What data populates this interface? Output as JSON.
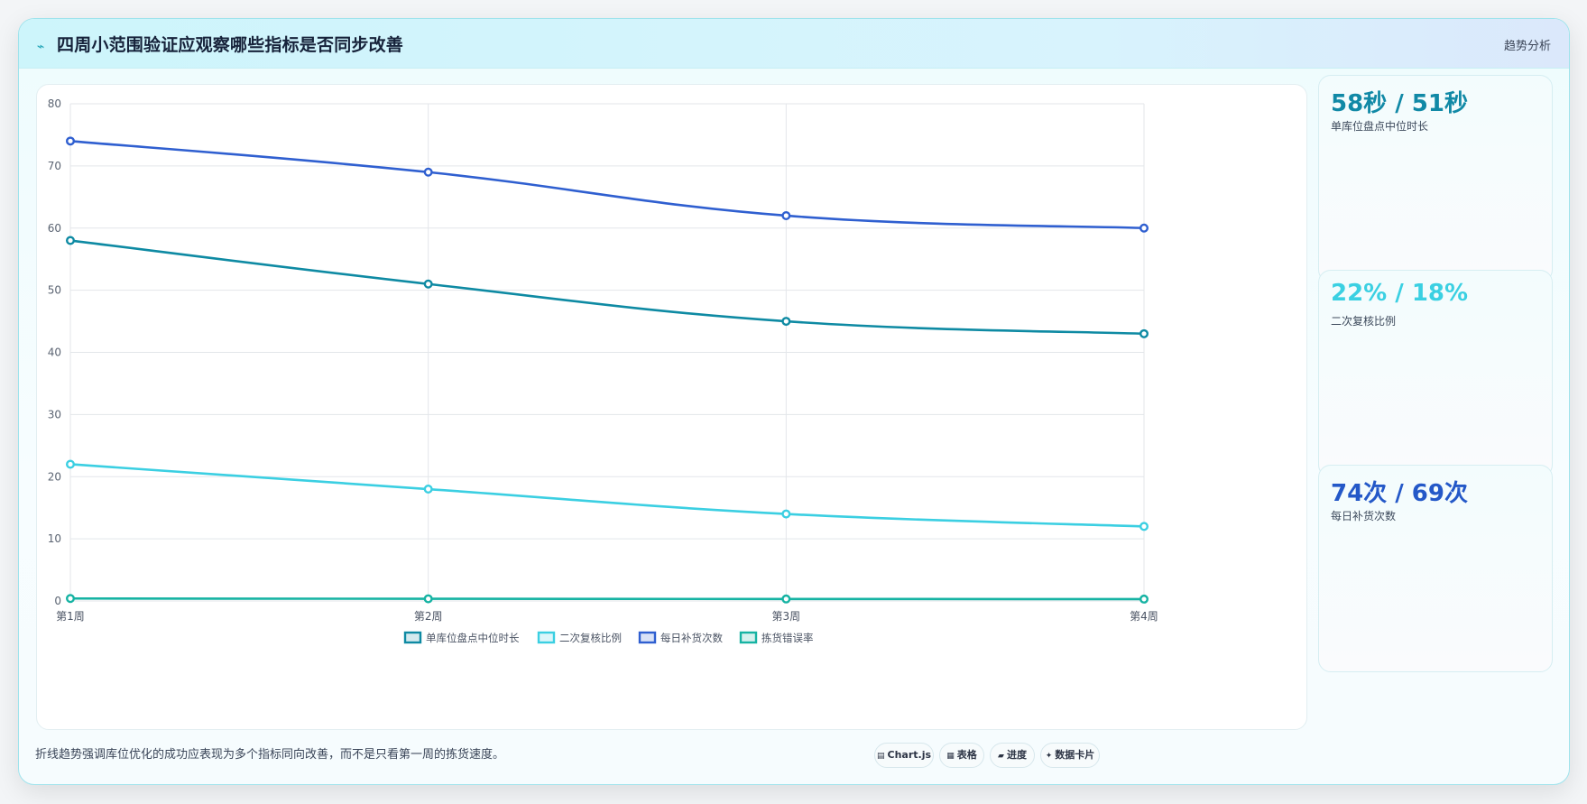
{
  "header": {
    "icon": "lightning-icon",
    "title": "四周小范围验证应观察哪些指标是否同步改善",
    "tag": "趋势分析"
  },
  "chart_data": {
    "type": "line",
    "categories": [
      "第1周",
      "第2周",
      "第3周",
      "第4周"
    ],
    "ylim": [
      0,
      80
    ],
    "yticks": [
      0,
      10,
      20,
      30,
      40,
      50,
      60,
      70,
      80
    ],
    "grid": true,
    "legend_placement": "bottom",
    "series": [
      {
        "name": "单库位盘点中位时长",
        "color": "#0e8aa3",
        "values": [
          58,
          51,
          45,
          43
        ]
      },
      {
        "name": "二次复核比例",
        "color": "#3bcfe2",
        "values": [
          22,
          18,
          14,
          12
        ]
      },
      {
        "name": "每日补货次数",
        "color": "#2f5fd0",
        "values": [
          74,
          69,
          62,
          60
        ]
      },
      {
        "name": "拣货错误率",
        "color": "#16b3a3",
        "values": [
          0.4,
          0.35,
          0.32,
          0.3
        ]
      }
    ]
  },
  "stats": [
    {
      "value": "58秒 / 51秒",
      "label": "单库位盘点中位时长",
      "color": "#1189a6"
    },
    {
      "value": "22% / 18%",
      "label": "二次复核比例",
      "color": "#3bd0e2"
    },
    {
      "value": "74次 / 69次",
      "label": "每日补货次数",
      "color": "#2458c8"
    }
  ],
  "caption": "折线趋势强调库位优化的成功应表现为多个指标同向改善，而不是只看第一周的拣货速度。",
  "buttons": [
    {
      "icon": "chart-icon",
      "glyph": "▤",
      "label": "Chart.js"
    },
    {
      "icon": "table-icon",
      "glyph": "▦",
      "label": "表格"
    },
    {
      "icon": "progress-icon",
      "glyph": "▰",
      "label": "进度"
    },
    {
      "icon": "sparkle-icon",
      "glyph": "✦",
      "label": "数据卡片"
    }
  ]
}
